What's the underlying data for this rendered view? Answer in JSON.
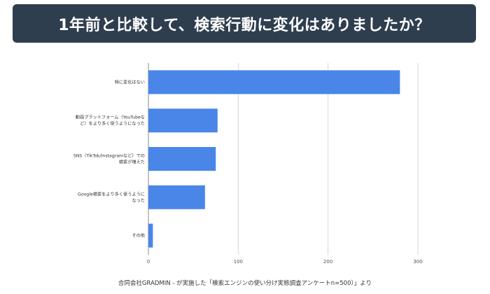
{
  "banner": {
    "title": "1年前と比較して、検索行動に変化はありましたか？"
  },
  "footer": {
    "source": "合同会社GRADMIN - が実施した「検索エンジンの使い分け実態調査アンケートn=500）」より"
  },
  "colors": {
    "banner_bg": "#2f3e4f",
    "bar": "#4a86e8",
    "grid": "#cccccc"
  },
  "chart_data": {
    "type": "bar",
    "orientation": "horizontal",
    "categories": [
      [
        "特に変化はない"
      ],
      [
        "動画プラットフォーム（YouTubeな",
        "ど）をより多く使うようになった"
      ],
      [
        "SNS（TikTok/Instagramなど）での",
        "検索が増えた"
      ],
      [
        "Google検索をより多く使うように",
        "なった"
      ],
      [
        "その他"
      ]
    ],
    "values": [
      280,
      77,
      75,
      63,
      5
    ],
    "xlim": [
      0,
      300
    ],
    "xticks": [
      0,
      100,
      200,
      300
    ],
    "grid": true,
    "legend": "none"
  }
}
